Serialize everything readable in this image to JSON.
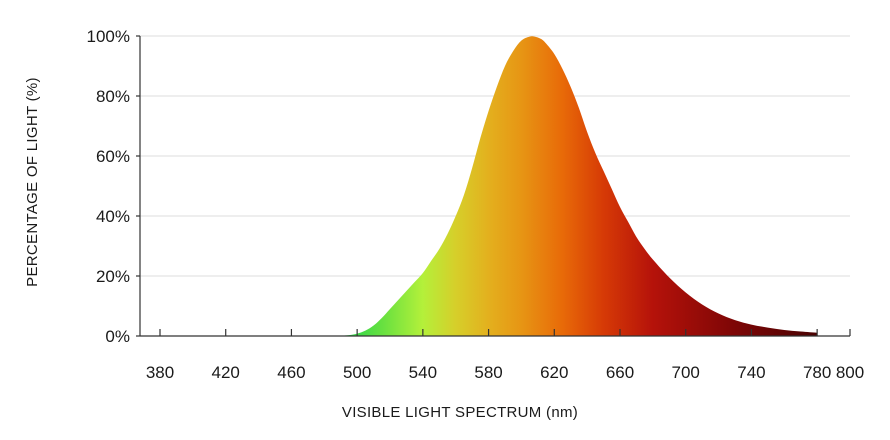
{
  "chart_data": {
    "type": "area",
    "title": "",
    "xlabel": "VISIBLE LIGHT SPECTRUM (nm)",
    "ylabel": "PERCENTAGE OF LIGHT (%)",
    "xlim": [
      370,
      800
    ],
    "ylim": [
      0,
      100
    ],
    "x_ticks": [
      380,
      420,
      460,
      500,
      540,
      580,
      620,
      660,
      700,
      740,
      780,
      800
    ],
    "x_tick_labels": [
      "380",
      "420",
      "460",
      "500",
      "540",
      "580",
      "620",
      "660",
      "700",
      "740",
      "780",
      "800"
    ],
    "y_ticks": [
      0,
      20,
      40,
      60,
      80,
      100
    ],
    "y_tick_labels": [
      "0%",
      "20%",
      "40%",
      "60%",
      "80%",
      "100%"
    ],
    "grid": "horizontal",
    "fill": "wavelength-colored gradient (green to yellow to orange to red to dark red)",
    "series": [
      {
        "x": [
          488,
          495,
          500,
          505,
          510,
          515,
          520,
          525,
          530,
          535,
          540,
          545,
          550,
          555,
          560,
          565,
          570,
          575,
          580,
          585,
          590,
          595,
          600,
          605,
          608,
          612,
          615,
          620,
          625,
          630,
          635,
          640,
          645,
          650,
          655,
          660,
          665,
          670,
          675,
          680,
          690,
          700,
          710,
          720,
          730,
          740,
          750,
          760,
          770,
          780
        ],
        "values": [
          0,
          0.3,
          0.8,
          1.8,
          3.5,
          6,
          9,
          12,
          15,
          18,
          21,
          25,
          29,
          34,
          40,
          47,
          56,
          66,
          75,
          83,
          90,
          95,
          98.5,
          99.8,
          99.8,
          99,
          97.5,
          94,
          89,
          83,
          76,
          68,
          61,
          55,
          49,
          43,
          38,
          33,
          29,
          25.5,
          19.5,
          14.5,
          10.5,
          7.5,
          5.3,
          3.8,
          2.8,
          2.0,
          1.5,
          1.1
        ]
      }
    ],
    "colors": {
      "gridline": "#dddddd",
      "axis": "#333333",
      "gradient_stops": [
        {
          "nm": 495,
          "color": "#2fd64b"
        },
        {
          "nm": 515,
          "color": "#66e040"
        },
        {
          "nm": 540,
          "color": "#b4f03a"
        },
        {
          "nm": 560,
          "color": "#d6cf2a"
        },
        {
          "nm": 580,
          "color": "#e3b01e"
        },
        {
          "nm": 600,
          "color": "#e79514"
        },
        {
          "nm": 625,
          "color": "#e86a08"
        },
        {
          "nm": 650,
          "color": "#d63a06"
        },
        {
          "nm": 680,
          "color": "#b5120a"
        },
        {
          "nm": 730,
          "color": "#7d0606"
        },
        {
          "nm": 780,
          "color": "#4a0303"
        }
      ]
    }
  }
}
